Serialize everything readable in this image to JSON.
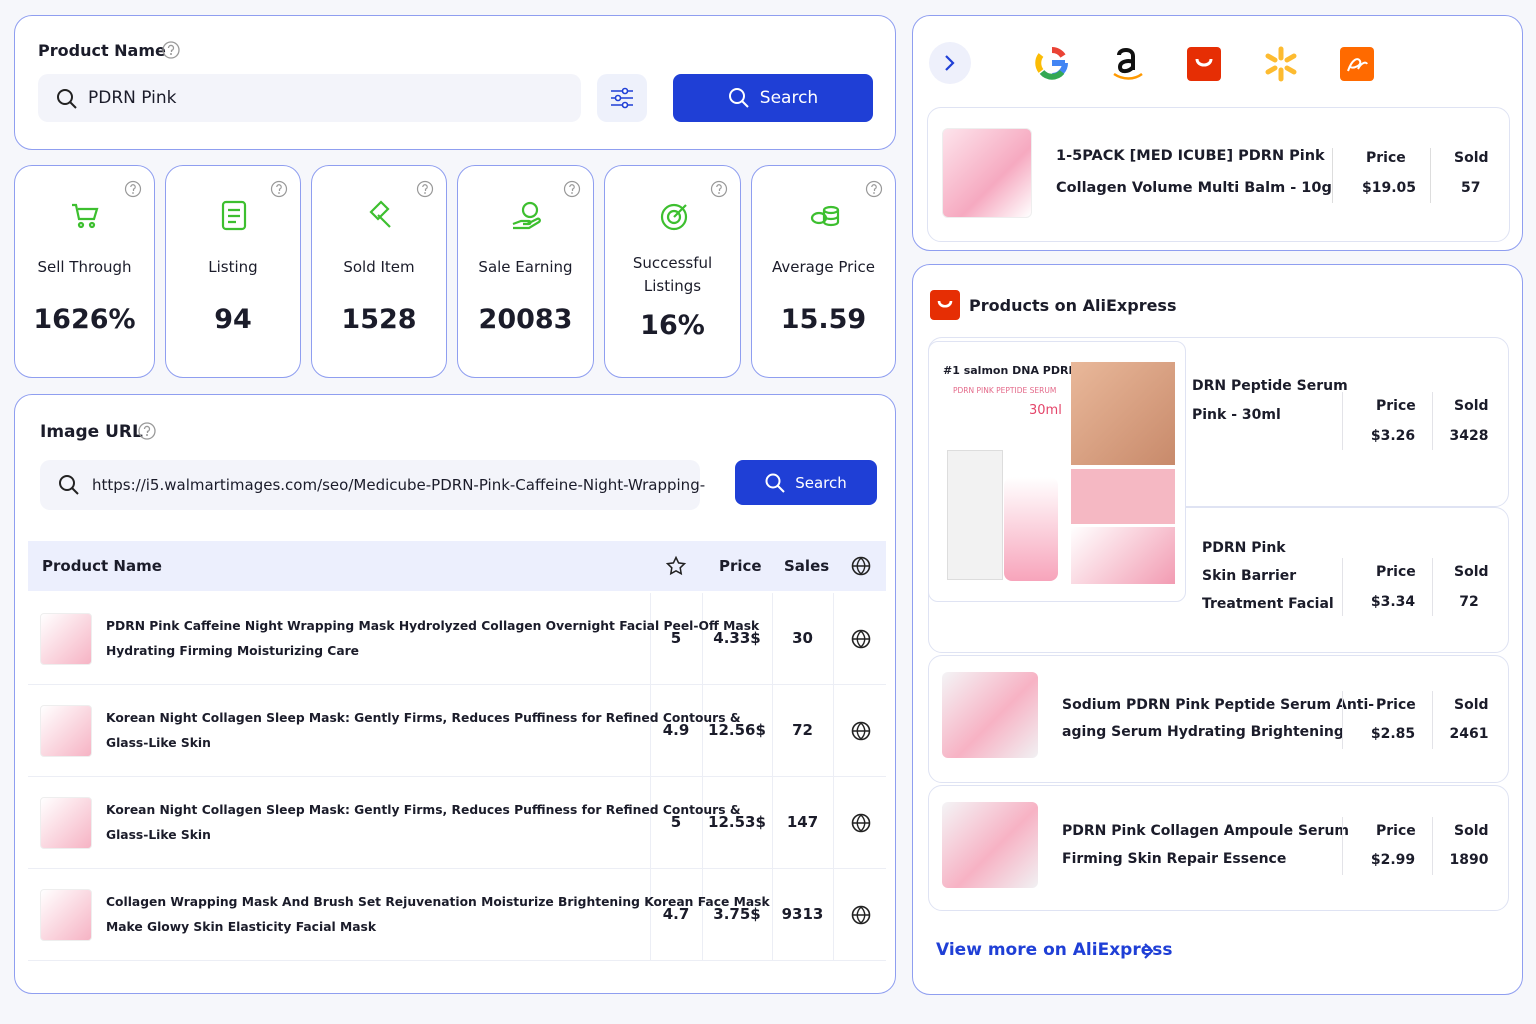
{
  "search": {
    "label": "Product Name",
    "query": "PDRN Pink",
    "button": "Search"
  },
  "stats": [
    {
      "label": "Sell Through",
      "value": "1626%"
    },
    {
      "label": "Listing",
      "value": "94"
    },
    {
      "label": "Sold Item",
      "value": "1528"
    },
    {
      "label": "Sale Earning",
      "value": "20083"
    },
    {
      "label": "Successful Listings",
      "value": "16%"
    },
    {
      "label": "Average Price",
      "value": "15.59"
    }
  ],
  "image_search": {
    "label": "Image URL",
    "url": "https://i5.walmartimages.com/seo/Medicube-PDRN-Pink-Caffeine-Night-Wrapping-",
    "button": "Search"
  },
  "table": {
    "columns": {
      "name": "Product Name",
      "price": "Price",
      "sales": "Sales"
    },
    "rows": [
      {
        "name_lines": [
          "PDRN Pink Caffeine Night Wrapping Mask Hydrolyzed Collagen Overnight Facial Peel-Off Mask",
          "Hydrating Firming Moisturizing Care"
        ],
        "rating": "5",
        "price": "4.33$",
        "sales": "30"
      },
      {
        "name_lines": [
          "Korean Night Collagen Sleep Mask: Gently Firms, Reduces Puffiness for Refined Contours &",
          "Glass-Like Skin"
        ],
        "rating": "4.9",
        "price": "12.56$",
        "sales": "72"
      },
      {
        "name_lines": [
          "Korean Night Collagen Sleep Mask: Gently Firms, Reduces Puffiness for Refined Contours &",
          "Glass-Like Skin"
        ],
        "rating": "5",
        "price": "12.53$",
        "sales": "147"
      },
      {
        "name_lines": [
          "Collagen Wrapping Mask And Brush Set Rejuvenation Moisturize Brightening Korean Face Mask",
          "Make Glowy Skin Elasticity Facial Mask"
        ],
        "rating": "4.7",
        "price": "3.75$",
        "sales": "9313"
      }
    ]
  },
  "top_product": {
    "name_lines": [
      "1-5PACK [MED ICUBE] PDRN Pink",
      "Collagen Volume Multi Balm - 10g"
    ],
    "price_label": "Price",
    "price": "$19.05",
    "sold_label": "Sold",
    "sold": "57"
  },
  "aliexpress": {
    "title": "Products on AliExpress",
    "featured_image_text": {
      "headline": "#1 salmon DNA PDRN",
      "subline": "PDRN PINK PEPTIDE SERUM",
      "size": "30ml"
    },
    "products": [
      {
        "name_lines": [
          "DRN Peptide Serum",
          "Pink - 30ml"
        ],
        "price_label": "Price",
        "price": "$3.26",
        "sold_label": "Sold",
        "sold": "3428"
      },
      {
        "name_lines": [
          "PDRN Pink",
          "Skin Barrier",
          "Treatment Facial"
        ],
        "price_label": "Price",
        "price": "$3.34",
        "sold_label": "Sold",
        "sold": "72"
      },
      {
        "name_lines": [
          "Sodium PDRN Pink Peptide Serum Anti-",
          "aging Serum Hydrating Brightening"
        ],
        "price_label": "Price",
        "price": "$2.85",
        "sold_label": "Sold",
        "sold": "2461"
      },
      {
        "name_lines": [
          "PDRN Pink Collagen Ampoule Serum",
          "Firming Skin Repair Essence"
        ],
        "price_label": "Price",
        "price": "$2.99",
        "sold_label": "Sold",
        "sold": "1890"
      }
    ],
    "more_link": "View more on AliExpress"
  }
}
